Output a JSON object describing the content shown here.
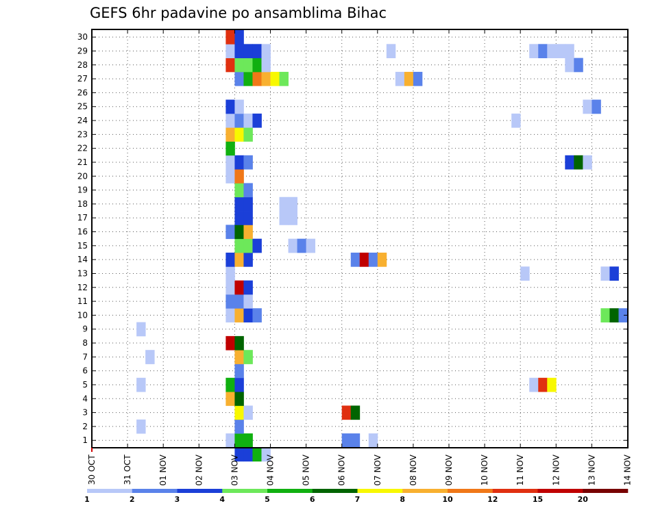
{
  "chart_data": {
    "type": "heatmap",
    "title": "GEFS 6hr padavine po ansamblima Bihac",
    "xlabel": "",
    "ylabel": "",
    "x_ticks": [
      "30 OCT",
      "31 OCT",
      "01 NOV",
      "02 NOV",
      "03 NOV",
      "04 NOV",
      "05 NOV",
      "06 NOV",
      "07 NOV",
      "08 NOV",
      "09 NOV",
      "10 NOV",
      "11 NOV",
      "12 NOV",
      "13 NOV",
      "14 NOV"
    ],
    "x_range_days": [
      0,
      15
    ],
    "y_range": [
      0,
      30
    ],
    "y_ticks": [
      1,
      2,
      3,
      4,
      5,
      6,
      7,
      8,
      9,
      10,
      11,
      12,
      13,
      14,
      15,
      16,
      17,
      18,
      19,
      20,
      21,
      22,
      23,
      24,
      25,
      26,
      27,
      28,
      29,
      30
    ],
    "grid": true,
    "colorbar": {
      "placement": "bottom",
      "labels": [
        "1",
        "2",
        "3",
        "4",
        "5",
        "6",
        "7",
        "8",
        "10",
        "12",
        "15",
        "20"
      ],
      "colors": [
        "#b8c8f8",
        "#5a82ea",
        "#1b3fd8",
        "#6de85a",
        "#10b010",
        "#006400",
        "#f8f800",
        "#f8b030",
        "#f07818",
        "#e03010",
        "#c00000",
        "#780000"
      ]
    },
    "cell_width_hours": 6,
    "cells": [
      {
        "t": 96,
        "m": 0,
        "c": 3
      },
      {
        "t": 102,
        "m": 0,
        "c": 3
      },
      {
        "t": 108,
        "m": 0,
        "c": 5
      },
      {
        "t": 114,
        "m": 0,
        "c": 1
      },
      {
        "t": 90,
        "m": 1,
        "c": 1
      },
      {
        "t": 96,
        "m": 1,
        "c": 5
      },
      {
        "t": 102,
        "m": 1,
        "c": 5
      },
      {
        "t": 168,
        "m": 1,
        "c": 2
      },
      {
        "t": 174,
        "m": 1,
        "c": 2
      },
      {
        "t": 186,
        "m": 1,
        "c": 1
      },
      {
        "t": 30,
        "m": 2,
        "c": 1
      },
      {
        "t": 96,
        "m": 2,
        "c": 2
      },
      {
        "t": 96,
        "m": 3,
        "c": 7
      },
      {
        "t": 102,
        "m": 3,
        "c": 1
      },
      {
        "t": 168,
        "m": 3,
        "c": 10
      },
      {
        "t": 174,
        "m": 3,
        "c": 6
      },
      {
        "t": 90,
        "m": 4,
        "c": 8
      },
      {
        "t": 96,
        "m": 4,
        "c": 6
      },
      {
        "t": 30,
        "m": 5,
        "c": 1
      },
      {
        "t": 90,
        "m": 5,
        "c": 5
      },
      {
        "t": 96,
        "m": 5,
        "c": 3
      },
      {
        "t": 294,
        "m": 5,
        "c": 1
      },
      {
        "t": 300,
        "m": 5,
        "c": 10
      },
      {
        "t": 306,
        "m": 5,
        "c": 7
      },
      {
        "t": 96,
        "m": 6,
        "c": 2
      },
      {
        "t": 36,
        "m": 7,
        "c": 1
      },
      {
        "t": 96,
        "m": 7,
        "c": 8
      },
      {
        "t": 102,
        "m": 7,
        "c": 4
      },
      {
        "t": 90,
        "m": 8,
        "c": 11
      },
      {
        "t": 96,
        "m": 8,
        "c": 6
      },
      {
        "t": 30,
        "m": 9,
        "c": 1
      },
      {
        "t": 90,
        "m": 10,
        "c": 1
      },
      {
        "t": 96,
        "m": 10,
        "c": 8
      },
      {
        "t": 102,
        "m": 10,
        "c": 3
      },
      {
        "t": 108,
        "m": 10,
        "c": 2
      },
      {
        "t": 342,
        "m": 10,
        "c": 4
      },
      {
        "t": 348,
        "m": 10,
        "c": 6
      },
      {
        "t": 354,
        "m": 10,
        "c": 2
      },
      {
        "t": 90,
        "m": 11,
        "c": 2
      },
      {
        "t": 96,
        "m": 11,
        "c": 2
      },
      {
        "t": 102,
        "m": 11,
        "c": 1
      },
      {
        "t": 90,
        "m": 12,
        "c": 1
      },
      {
        "t": 96,
        "m": 12,
        "c": 11
      },
      {
        "t": 102,
        "m": 12,
        "c": 3
      },
      {
        "t": 90,
        "m": 13,
        "c": 1
      },
      {
        "t": 288,
        "m": 13,
        "c": 1
      },
      {
        "t": 342,
        "m": 13,
        "c": 1
      },
      {
        "t": 348,
        "m": 13,
        "c": 3
      },
      {
        "t": 90,
        "m": 14,
        "c": 3
      },
      {
        "t": 96,
        "m": 14,
        "c": 8
      },
      {
        "t": 102,
        "m": 14,
        "c": 3
      },
      {
        "t": 174,
        "m": 14,
        "c": 2
      },
      {
        "t": 180,
        "m": 14,
        "c": 11
      },
      {
        "t": 186,
        "m": 14,
        "c": 2
      },
      {
        "t": 192,
        "m": 14,
        "c": 8
      },
      {
        "t": 96,
        "m": 15,
        "c": 4
      },
      {
        "t": 102,
        "m": 15,
        "c": 4
      },
      {
        "t": 108,
        "m": 15,
        "c": 3
      },
      {
        "t": 132,
        "m": 15,
        "c": 1
      },
      {
        "t": 138,
        "m": 15,
        "c": 2
      },
      {
        "t": 144,
        "m": 15,
        "c": 1
      },
      {
        "t": 90,
        "m": 16,
        "c": 2
      },
      {
        "t": 96,
        "m": 16,
        "c": 6
      },
      {
        "t": 102,
        "m": 16,
        "c": 8
      },
      {
        "t": 96,
        "m": 17,
        "c": 3
      },
      {
        "t": 102,
        "m": 17,
        "c": 3
      },
      {
        "t": 126,
        "m": 17,
        "c": 1
      },
      {
        "t": 132,
        "m": 17,
        "c": 1
      },
      {
        "t": 96,
        "m": 18,
        "c": 3
      },
      {
        "t": 102,
        "m": 18,
        "c": 3
      },
      {
        "t": 126,
        "m": 18,
        "c": 1
      },
      {
        "t": 132,
        "m": 18,
        "c": 1
      },
      {
        "t": 96,
        "m": 19,
        "c": 4
      },
      {
        "t": 102,
        "m": 19,
        "c": 2
      },
      {
        "t": 90,
        "m": 20,
        "c": 1
      },
      {
        "t": 96,
        "m": 20,
        "c": 9
      },
      {
        "t": 90,
        "m": 21,
        "c": 1
      },
      {
        "t": 96,
        "m": 21,
        "c": 3
      },
      {
        "t": 102,
        "m": 21,
        "c": 2
      },
      {
        "t": 318,
        "m": 21,
        "c": 3
      },
      {
        "t": 324,
        "m": 21,
        "c": 6
      },
      {
        "t": 330,
        "m": 21,
        "c": 1
      },
      {
        "t": 90,
        "m": 22,
        "c": 5
      },
      {
        "t": 90,
        "m": 23,
        "c": 8
      },
      {
        "t": 96,
        "m": 23,
        "c": 7
      },
      {
        "t": 102,
        "m": 23,
        "c": 4
      },
      {
        "t": 90,
        "m": 24,
        "c": 1
      },
      {
        "t": 96,
        "m": 24,
        "c": 2
      },
      {
        "t": 102,
        "m": 24,
        "c": 1
      },
      {
        "t": 108,
        "m": 24,
        "c": 3
      },
      {
        "t": 282,
        "m": 24,
        "c": 1
      },
      {
        "t": 90,
        "m": 25,
        "c": 3
      },
      {
        "t": 96,
        "m": 25,
        "c": 1
      },
      {
        "t": 330,
        "m": 25,
        "c": 1
      },
      {
        "t": 336,
        "m": 25,
        "c": 2
      },
      {
        "t": 96,
        "m": 27,
        "c": 2
      },
      {
        "t": 102,
        "m": 27,
        "c": 5
      },
      {
        "t": 108,
        "m": 27,
        "c": 9
      },
      {
        "t": 114,
        "m": 27,
        "c": 8
      },
      {
        "t": 120,
        "m": 27,
        "c": 7
      },
      {
        "t": 126,
        "m": 27,
        "c": 4
      },
      {
        "t": 204,
        "m": 27,
        "c": 1
      },
      {
        "t": 210,
        "m": 27,
        "c": 8
      },
      {
        "t": 216,
        "m": 27,
        "c": 2
      },
      {
        "t": 90,
        "m": 28,
        "c": 10
      },
      {
        "t": 96,
        "m": 28,
        "c": 4
      },
      {
        "t": 102,
        "m": 28,
        "c": 4
      },
      {
        "t": 108,
        "m": 28,
        "c": 5
      },
      {
        "t": 114,
        "m": 28,
        "c": 1
      },
      {
        "t": 318,
        "m": 28,
        "c": 1
      },
      {
        "t": 324,
        "m": 28,
        "c": 2
      },
      {
        "t": 90,
        "m": 29,
        "c": 1
      },
      {
        "t": 96,
        "m": 29,
        "c": 3
      },
      {
        "t": 102,
        "m": 29,
        "c": 3
      },
      {
        "t": 108,
        "m": 29,
        "c": 3
      },
      {
        "t": 114,
        "m": 29,
        "c": 1
      },
      {
        "t": 198,
        "m": 29,
        "c": 1
      },
      {
        "t": 294,
        "m": 29,
        "c": 1
      },
      {
        "t": 300,
        "m": 29,
        "c": 2
      },
      {
        "t": 306,
        "m": 29,
        "c": 1
      },
      {
        "t": 312,
        "m": 29,
        "c": 1
      },
      {
        "t": 318,
        "m": 29,
        "c": 1
      },
      {
        "t": 90,
        "m": 30,
        "c": 10
      },
      {
        "t": 96,
        "m": 30,
        "c": 3
      }
    ]
  }
}
